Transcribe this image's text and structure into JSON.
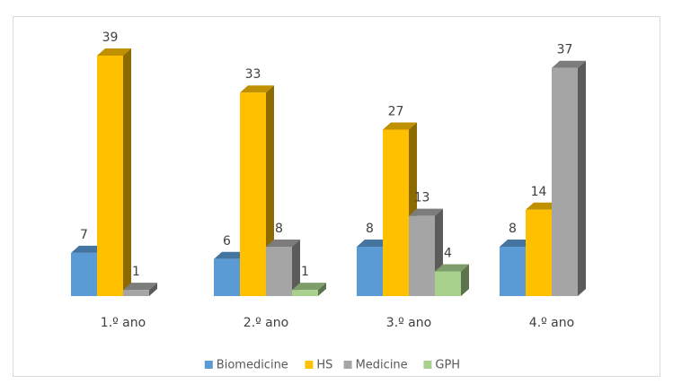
{
  "chart_data": {
    "type": "bar3d",
    "categories": [
      "1.º ano",
      "2.º ano",
      "3.º ano",
      "4.º ano"
    ],
    "series": [
      {
        "name": "Biomedicine",
        "color": "#5b9bd5",
        "values": [
          7,
          6,
          8,
          8
        ]
      },
      {
        "name": "HS",
        "color": "#ffc000",
        "values": [
          39,
          33,
          27,
          14
        ]
      },
      {
        "name": "Medicine",
        "color": "#a5a5a5",
        "values": [
          1,
          8,
          13,
          37
        ]
      },
      {
        "name": "GPH",
        "color": "#a9d18e",
        "values": [
          null,
          1,
          4,
          null
        ]
      }
    ],
    "legend": "bottom"
  }
}
